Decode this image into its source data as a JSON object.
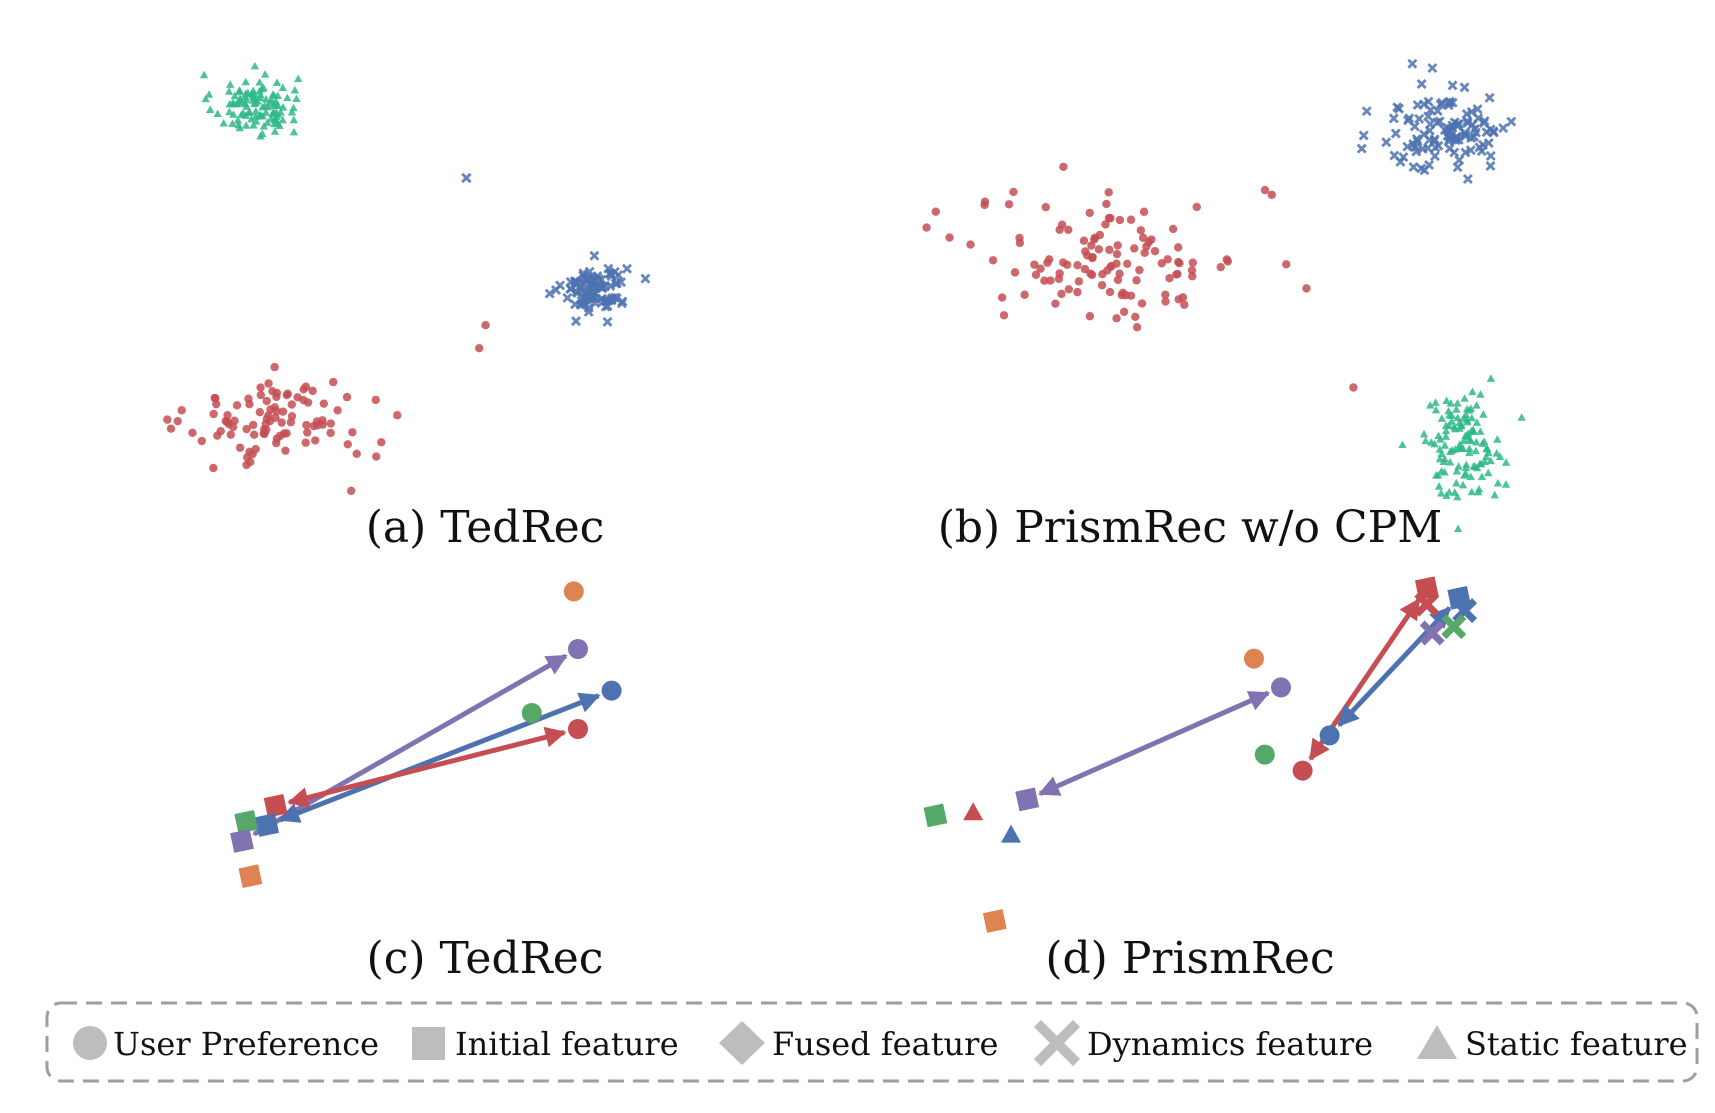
{
  "colors": {
    "red": "#c44e52",
    "blue": "#4c72b0",
    "green": "#2fb88a",
    "purple": "#8172b2",
    "orange": "#dd8452",
    "green_dark": "#55a868",
    "legend_gray": "#bdbdbd",
    "legend_border": "#9e9e9e"
  },
  "legend": {
    "items": [
      {
        "label": "User Preference",
        "icon": "circle-icon"
      },
      {
        "label": "Initial feature",
        "icon": "square-icon"
      },
      {
        "label": "Fused feature",
        "icon": "diamond-icon"
      },
      {
        "label": "Dynamics feature",
        "icon": "cross-icon"
      },
      {
        "label": "Static feature",
        "icon": "triangle-icon"
      }
    ]
  },
  "chart_data": [
    {
      "type": "scatter",
      "caption": "(a) TedRec",
      "axes": "hidden",
      "grid": false,
      "xlim": [
        0,
        100
      ],
      "ylim": [
        0,
        100
      ],
      "clusters": [
        {
          "color": "green",
          "marker": "triangle",
          "n": 110,
          "center": [
            18,
            86
          ],
          "spread": [
            6,
            6
          ]
        },
        {
          "color": "blue",
          "marker": "cross",
          "n": 95,
          "center": [
            71,
            46
          ],
          "spread": [
            4.5,
            5
          ]
        },
        {
          "color": "red",
          "marker": "circle",
          "n": 95,
          "center": [
            22,
            17
          ],
          "spread": [
            13,
            8
          ]
        }
      ],
      "points": [
        {
          "x": 51,
          "y": 70,
          "color": "blue",
          "marker": "cross"
        },
        {
          "x": 53,
          "y": 33,
          "color": "red",
          "marker": "circle"
        },
        {
          "x": 54,
          "y": 38,
          "color": "red",
          "marker": "circle"
        },
        {
          "x": 33,
          "y": 2,
          "color": "red",
          "marker": "circle"
        }
      ]
    },
    {
      "type": "scatter",
      "caption": "(b) PrismRec w/o CPM",
      "axes": "hidden",
      "grid": false,
      "xlim": [
        0,
        100
      ],
      "ylim": [
        0,
        100
      ],
      "clusters": [
        {
          "color": "blue",
          "marker": "cross",
          "n": 110,
          "center": [
            77,
            80
          ],
          "spread": [
            9,
            9
          ]
        },
        {
          "color": "red",
          "marker": "circle",
          "n": 115,
          "center": [
            27,
            52
          ],
          "spread": [
            18,
            12
          ]
        },
        {
          "color": "green",
          "marker": "triangle",
          "n": 120,
          "center": [
            79,
            13
          ],
          "spread": [
            5.5,
            10
          ]
        }
      ],
      "points": [
        {
          "x": 50,
          "y": 67,
          "color": "red",
          "marker": "circle"
        },
        {
          "x": 51,
          "y": 66,
          "color": "red",
          "marker": "circle"
        },
        {
          "x": 63,
          "y": 25,
          "color": "red",
          "marker": "circle"
        }
      ]
    },
    {
      "type": "scatter",
      "caption": "(c) TedRec",
      "axes": "hidden",
      "grid": false,
      "xlim": [
        0,
        100
      ],
      "ylim": [
        0,
        100
      ],
      "points": [
        {
          "x": 89,
          "y": 98,
          "color": "orange",
          "marker": "circle"
        },
        {
          "x": 90,
          "y": 80,
          "color": "purple",
          "marker": "circle"
        },
        {
          "x": 98,
          "y": 67,
          "color": "blue",
          "marker": "circle"
        },
        {
          "x": 79,
          "y": 60,
          "color": "green_dark",
          "marker": "circle"
        },
        {
          "x": 90,
          "y": 55,
          "color": "red",
          "marker": "circle"
        },
        {
          "x": 18,
          "y": 31,
          "color": "red",
          "marker": "square"
        },
        {
          "x": 11,
          "y": 26,
          "color": "green_dark",
          "marker": "square"
        },
        {
          "x": 16,
          "y": 25,
          "color": "blue",
          "marker": "square"
        },
        {
          "x": 10,
          "y": 20,
          "color": "purple",
          "marker": "square"
        },
        {
          "x": 12,
          "y": 9,
          "color": "orange",
          "marker": "square"
        }
      ],
      "arrows": [
        {
          "from": [
            10,
            20
          ],
          "to": [
            90,
            80
          ],
          "color": "purple",
          "bidirectional": true
        },
        {
          "from": [
            16,
            25
          ],
          "to": [
            98,
            67
          ],
          "color": "blue",
          "bidirectional": true
        },
        {
          "from": [
            18,
            31
          ],
          "to": [
            90,
            55
          ],
          "color": "red",
          "bidirectional": true
        }
      ]
    },
    {
      "type": "scatter",
      "caption": "(d) PrismRec",
      "axes": "hidden",
      "grid": false,
      "xlim": [
        0,
        100
      ],
      "ylim": [
        0,
        100
      ],
      "points": [
        {
          "x": 92,
          "y": 99,
          "color": "red",
          "marker": "square"
        },
        {
          "x": 98,
          "y": 96,
          "color": "blue",
          "marker": "square"
        },
        {
          "x": 92,
          "y": 94,
          "color": "red",
          "marker": "cross"
        },
        {
          "x": 99,
          "y": 92,
          "color": "blue",
          "marker": "cross"
        },
        {
          "x": 93,
          "y": 85,
          "color": "purple",
          "marker": "cross"
        },
        {
          "x": 97,
          "y": 87,
          "color": "green_dark",
          "marker": "cross"
        },
        {
          "x": 60,
          "y": 77,
          "color": "orange",
          "marker": "circle"
        },
        {
          "x": 65,
          "y": 68,
          "color": "purple",
          "marker": "circle"
        },
        {
          "x": 74,
          "y": 53,
          "color": "blue",
          "marker": "circle"
        },
        {
          "x": 62,
          "y": 47,
          "color": "green_dark",
          "marker": "circle"
        },
        {
          "x": 69,
          "y": 42,
          "color": "red",
          "marker": "circle"
        },
        {
          "x": 18,
          "y": 33,
          "color": "purple",
          "marker": "square"
        },
        {
          "x": 1,
          "y": 28,
          "color": "green_dark",
          "marker": "square"
        },
        {
          "x": 8,
          "y": 29,
          "color": "red",
          "marker": "triangle"
        },
        {
          "x": 15,
          "y": 22,
          "color": "blue",
          "marker": "triangle"
        },
        {
          "x": 12,
          "y": -5,
          "color": "orange",
          "marker": "square"
        }
      ],
      "arrows": [
        {
          "from": [
            18,
            33
          ],
          "to": [
            65,
            68
          ],
          "color": "purple",
          "bidirectional": true
        },
        {
          "from": [
            92,
            99
          ],
          "to": [
            69,
            42
          ],
          "color": "red",
          "bidirectional": true
        },
        {
          "from": [
            98,
            96
          ],
          "to": [
            74,
            53
          ],
          "color": "blue",
          "bidirectional": true
        }
      ]
    }
  ]
}
